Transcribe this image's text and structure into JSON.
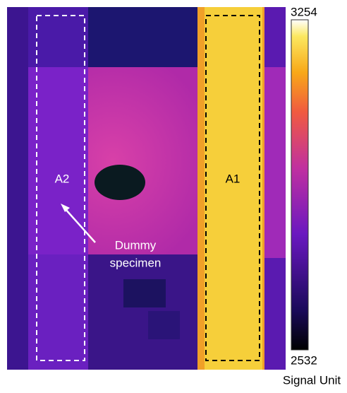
{
  "regions": [
    {
      "label": "A2"
    },
    {
      "label": "A1"
    }
  ],
  "annotation": {
    "lines": [
      "Dummy",
      "specimen"
    ]
  },
  "colorbar": {
    "max": 3254,
    "min": 2532,
    "label": "Signal Unit"
  }
}
